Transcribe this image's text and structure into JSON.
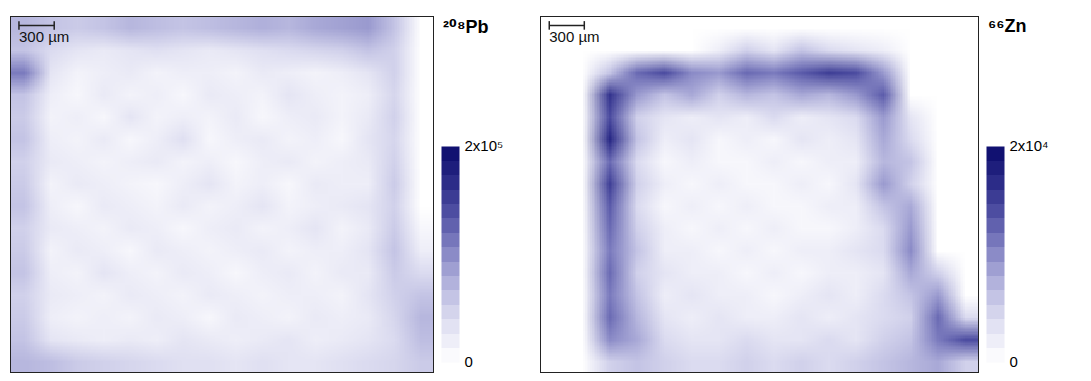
{
  "chart_data": [
    {
      "type": "heatmap",
      "title": "²⁰⁸Pb",
      "xlim": [
        0,
        3600
      ],
      "ylim": [
        0,
        3040
      ],
      "tick_labels": false,
      "scale_bar": {
        "length": 300,
        "label": "300 µm"
      },
      "color_range": [
        0,
        200000
      ],
      "color_ticks": [
        0,
        {
          "value": 200000,
          "label": "2x10⁵"
        }
      ],
      "cells": [
        [
          70000,
          60000,
          55000,
          60000,
          70000,
          65000,
          60000,
          65000,
          70000,
          75000,
          70000,
          80000,
          85000,
          90000,
          60000,
          0
        ],
        [
          60000,
          40000,
          30000,
          25000,
          30000,
          35000,
          30000,
          25000,
          30000,
          35000,
          40000,
          45000,
          50000,
          60000,
          50000,
          0
        ],
        [
          110000,
          30000,
          15000,
          20000,
          25000,
          15000,
          20000,
          20000,
          15000,
          25000,
          20000,
          15000,
          20000,
          30000,
          50000,
          0
        ],
        [
          60000,
          20000,
          10000,
          25000,
          15000,
          20000,
          10000,
          25000,
          20000,
          15000,
          30000,
          20000,
          15000,
          20000,
          45000,
          0
        ],
        [
          55000,
          15000,
          20000,
          10000,
          30000,
          15000,
          20000,
          15000,
          25000,
          10000,
          20000,
          25000,
          15000,
          25000,
          50000,
          0
        ],
        [
          60000,
          20000,
          15000,
          25000,
          10000,
          20000,
          35000,
          10000,
          20000,
          25000,
          15000,
          20000,
          10000,
          30000,
          45000,
          0
        ],
        [
          50000,
          25000,
          20000,
          15000,
          20000,
          25000,
          15000,
          20000,
          10000,
          20000,
          25000,
          15000,
          20000,
          25000,
          50000,
          0
        ],
        [
          55000,
          15000,
          25000,
          20000,
          15000,
          10000,
          20000,
          30000,
          15000,
          20000,
          10000,
          25000,
          20000,
          20000,
          55000,
          0
        ],
        [
          60000,
          20000,
          10000,
          25000,
          20000,
          15000,
          25000,
          15000,
          20000,
          30000,
          15000,
          20000,
          25000,
          30000,
          50000,
          0
        ],
        [
          50000,
          25000,
          20000,
          15000,
          25000,
          20000,
          10000,
          20000,
          25000,
          15000,
          20000,
          30000,
          15000,
          25000,
          55000,
          10000
        ],
        [
          55000,
          15000,
          25000,
          20000,
          10000,
          25000,
          20000,
          15000,
          20000,
          25000,
          15000,
          20000,
          20000,
          30000,
          60000,
          20000
        ],
        [
          60000,
          20000,
          15000,
          30000,
          20000,
          15000,
          25000,
          20000,
          10000,
          20000,
          25000,
          15000,
          25000,
          25000,
          55000,
          40000
        ],
        [
          50000,
          25000,
          20000,
          15000,
          25000,
          20000,
          15000,
          25000,
          20000,
          15000,
          20000,
          20000,
          15000,
          30000,
          50000,
          60000
        ],
        [
          55000,
          20000,
          15000,
          20000,
          15000,
          25000,
          20000,
          10000,
          25000,
          20000,
          15000,
          25000,
          20000,
          25000,
          45000,
          70000
        ],
        [
          60000,
          30000,
          25000,
          20000,
          25000,
          20000,
          30000,
          25000,
          20000,
          25000,
          30000,
          20000,
          25000,
          30000,
          40000,
          65000
        ],
        [
          70000,
          65000,
          55000,
          50000,
          45000,
          40000,
          35000,
          35000,
          30000,
          35000,
          30000,
          30000,
          35000,
          40000,
          45000,
          55000
        ]
      ]
    },
    {
      "type": "heatmap",
      "title": "⁶⁶Zn",
      "xlim": [
        0,
        3750
      ],
      "ylim": [
        0,
        3040
      ],
      "tick_labels": false,
      "scale_bar": {
        "length": 300,
        "label": "300 µm"
      },
      "color_range": [
        0,
        20000
      ],
      "color_ticks": [
        0,
        {
          "value": 20000,
          "label": "2x10⁴"
        }
      ],
      "cells": [
        [
          0,
          0,
          0,
          0,
          0,
          0,
          0,
          0,
          0,
          0,
          0,
          0,
          0,
          0,
          0,
          0
        ],
        [
          0,
          0,
          0,
          0,
          0,
          0,
          2000,
          5000,
          3000,
          6000,
          4000,
          3000,
          2000,
          0,
          0,
          0
        ],
        [
          0,
          0,
          6000,
          12000,
          14000,
          10000,
          9000,
          12000,
          11000,
          13000,
          15000,
          14000,
          9000,
          0,
          0,
          0
        ],
        [
          0,
          0,
          16000,
          9000,
          6000,
          8000,
          5000,
          7000,
          6000,
          8000,
          7000,
          9000,
          13000,
          0,
          0,
          0
        ],
        [
          0,
          0,
          14000,
          5000,
          3000,
          2000,
          3000,
          2000,
          4000,
          2000,
          3000,
          4000,
          9000,
          3000,
          0,
          0
        ],
        [
          0,
          0,
          17000,
          6000,
          2000,
          3000,
          1000,
          2000,
          1000,
          3000,
          2000,
          3000,
          8000,
          4000,
          0,
          0
        ],
        [
          0,
          0,
          12000,
          4000,
          1000,
          2000,
          1000,
          1000,
          2000,
          1000,
          2000,
          2000,
          7000,
          6000,
          0,
          0
        ],
        [
          0,
          0,
          15000,
          5000,
          2000,
          1000,
          2000,
          1000,
          1000,
          2000,
          1000,
          3000,
          9000,
          5000,
          0,
          0
        ],
        [
          0,
          0,
          13000,
          4000,
          1000,
          2000,
          1000,
          2000,
          1000,
          1000,
          2000,
          2000,
          6000,
          8000,
          0,
          0
        ],
        [
          0,
          0,
          12000,
          5000,
          2000,
          1000,
          2000,
          1000,
          2000,
          1000,
          1000,
          2000,
          4000,
          9000,
          0,
          0
        ],
        [
          0,
          0,
          11000,
          6000,
          2000,
          2000,
          1000,
          2000,
          1000,
          2000,
          2000,
          3000,
          4000,
          10000,
          0,
          0
        ],
        [
          0,
          0,
          12000,
          5000,
          3000,
          2000,
          2000,
          1000,
          2000,
          1000,
          2000,
          2000,
          3000,
          8000,
          5000,
          0
        ],
        [
          0,
          0,
          11000,
          6000,
          2000,
          3000,
          2000,
          2000,
          1000,
          2000,
          3000,
          2000,
          4000,
          6000,
          9000,
          0
        ],
        [
          0,
          0,
          12000,
          7000,
          3000,
          2000,
          3000,
          2000,
          2000,
          3000,
          2000,
          3000,
          4000,
          5000,
          12000,
          4000
        ],
        [
          0,
          0,
          10000,
          8000,
          4000,
          3000,
          3000,
          4000,
          3000,
          3000,
          4000,
          3000,
          5000,
          6000,
          11000,
          14000
        ],
        [
          0,
          0,
          5000,
          6000,
          5000,
          4000,
          4000,
          5000,
          4000,
          5000,
          4000,
          5000,
          6000,
          7000,
          8000,
          5000
        ]
      ]
    }
  ]
}
